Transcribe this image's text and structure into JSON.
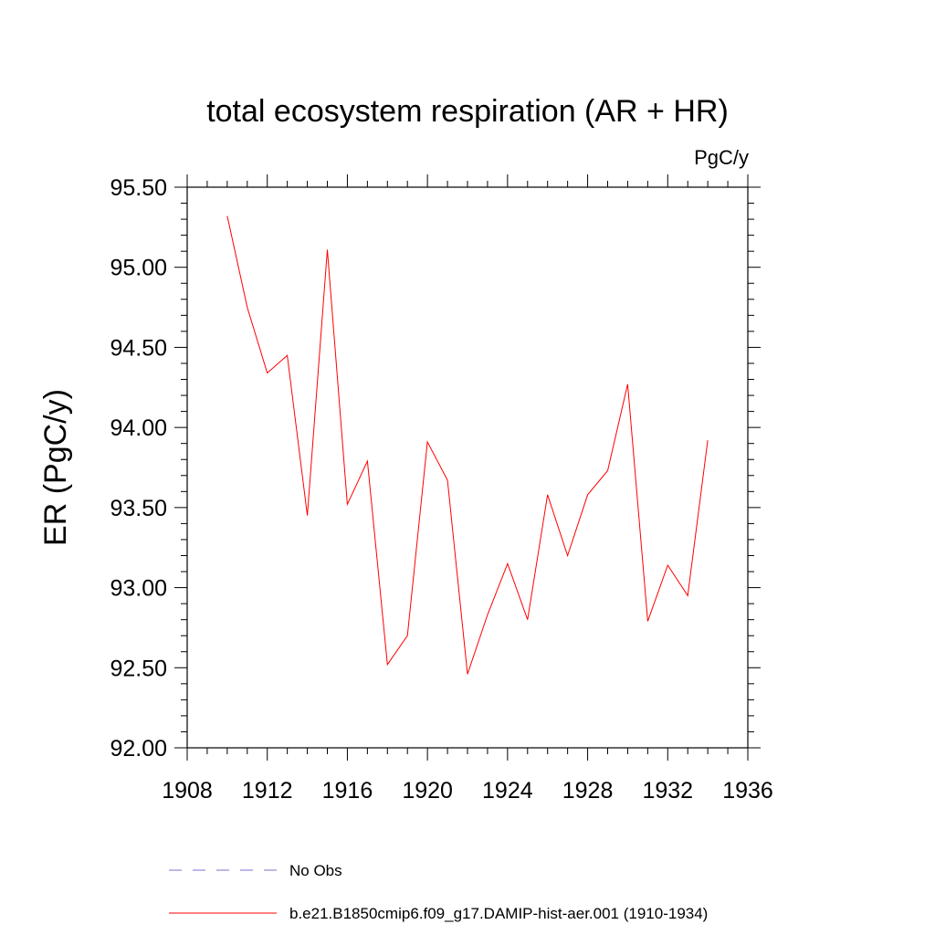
{
  "chart_data": {
    "type": "line",
    "title": "total ecosystem respiration (AR + HR)",
    "units_label": "PgC/y",
    "ylabel": "ER  (PgC/y)",
    "xlabel": "",
    "xlim": [
      1908,
      1936
    ],
    "ylim": [
      92.0,
      95.5
    ],
    "x_ticks": [
      "1908",
      "1912",
      "1916",
      "1920",
      "1924",
      "1928",
      "1932",
      "1936"
    ],
    "y_ticks": [
      "92.00",
      "92.50",
      "93.00",
      "93.50",
      "94.00",
      "94.50",
      "95.00",
      "95.50"
    ],
    "grid": false,
    "legend_position": "bottom",
    "series": [
      {
        "name": "b.e21.B1850cmip6.f09_g17.DAMIP-hist-aer.001 (1910-1934)",
        "color": "#ff0000",
        "style": "solid",
        "x": [
          1910,
          1911,
          1912,
          1913,
          1914,
          1915,
          1916,
          1917,
          1918,
          1919,
          1920,
          1921,
          1922,
          1923,
          1924,
          1925,
          1926,
          1927,
          1928,
          1929,
          1930,
          1931,
          1932,
          1933,
          1934
        ],
        "values": [
          95.32,
          94.75,
          94.34,
          94.45,
          93.45,
          95.11,
          93.52,
          93.79,
          92.52,
          92.7,
          93.91,
          93.67,
          92.46,
          92.83,
          93.15,
          92.8,
          93.58,
          93.2,
          93.58,
          93.73,
          94.27,
          92.79,
          93.14,
          92.95,
          93.92
        ]
      },
      {
        "name": "No Obs",
        "color": "#7b6fd0",
        "style": "dashed",
        "x": [],
        "values": []
      }
    ]
  }
}
